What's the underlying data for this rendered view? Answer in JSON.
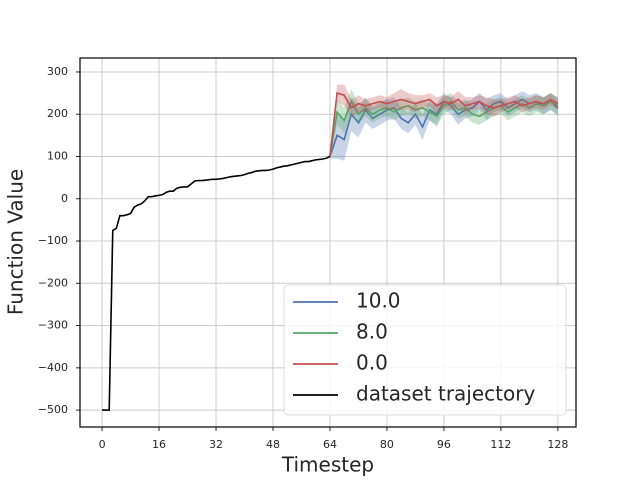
{
  "chart_data": {
    "type": "line",
    "xlabel": "Timestep",
    "ylabel": "Function Value",
    "xlim": [
      -6.2,
      133.1
    ],
    "ylim": [
      -540,
      333
    ],
    "xticks": [
      0,
      16,
      32,
      48,
      64,
      80,
      96,
      112,
      128
    ],
    "yticks": [
      {
        "value": -500,
        "label": "−500"
      },
      {
        "value": -400,
        "label": "−400"
      },
      {
        "value": -300,
        "label": "−300"
      },
      {
        "value": -200,
        "label": "−200"
      },
      {
        "value": -100,
        "label": "−100"
      },
      0,
      100,
      200,
      300
    ],
    "grid": true,
    "legend": "lower right",
    "series": [
      {
        "name": "10.0",
        "color": "#4c72b0",
        "x": [
          64,
          66,
          68,
          70,
          72,
          74,
          76,
          78,
          80,
          82,
          84,
          86,
          88,
          90,
          92,
          94,
          96,
          98,
          100,
          102,
          104,
          106,
          108,
          110,
          112,
          114,
          116,
          118,
          120,
          122,
          124,
          126,
          128
        ],
        "values": [
          100,
          150,
          140,
          200,
          180,
          210,
          190,
          200,
          210,
          215,
          190,
          180,
          200,
          170,
          210,
          200,
          230,
          220,
          200,
          210,
          215,
          230,
          210,
          225,
          230,
          215,
          225,
          235,
          225,
          230,
          220,
          230,
          215
        ],
        "errors": [
          5,
          55,
          50,
          40,
          35,
          30,
          25,
          25,
          25,
          25,
          25,
          25,
          25,
          30,
          25,
          25,
          20,
          20,
          25,
          20,
          20,
          20,
          25,
          20,
          20,
          20,
          20,
          20,
          20,
          20,
          20,
          20,
          20
        ]
      },
      {
        "name": "8.0",
        "color": "#55a868",
        "x": [
          64,
          66,
          68,
          70,
          72,
          74,
          76,
          78,
          80,
          82,
          84,
          86,
          88,
          90,
          92,
          94,
          96,
          98,
          100,
          102,
          104,
          106,
          108,
          110,
          112,
          114,
          116,
          118,
          120,
          122,
          124,
          126,
          128
        ],
        "values": [
          100,
          205,
          185,
          230,
          200,
          215,
          200,
          210,
          215,
          205,
          215,
          220,
          210,
          215,
          205,
          195,
          220,
          230,
          210,
          215,
          200,
          195,
          205,
          215,
          220,
          205,
          215,
          225,
          215,
          225,
          220,
          230,
          220
        ],
        "errors": [
          5,
          30,
          30,
          30,
          25,
          20,
          20,
          20,
          20,
          20,
          20,
          20,
          20,
          20,
          20,
          25,
          20,
          20,
          20,
          20,
          20,
          20,
          20,
          20,
          20,
          20,
          20,
          20,
          20,
          20,
          20,
          20,
          20
        ]
      },
      {
        "name": "0.0",
        "color": "#c44e52",
        "x": [
          64,
          66,
          68,
          70,
          72,
          74,
          76,
          78,
          80,
          82,
          84,
          86,
          88,
          90,
          92,
          94,
          96,
          98,
          100,
          102,
          104,
          106,
          108,
          110,
          112,
          114,
          116,
          118,
          120,
          122,
          124,
          126,
          128
        ],
        "values": [
          100,
          250,
          245,
          215,
          225,
          220,
          225,
          230,
          225,
          230,
          235,
          230,
          225,
          230,
          235,
          220,
          230,
          225,
          235,
          220,
          225,
          230,
          220,
          215,
          220,
          225,
          230,
          220,
          225,
          230,
          225,
          235,
          225
        ],
        "errors": [
          5,
          20,
          25,
          20,
          20,
          15,
          15,
          15,
          15,
          20,
          25,
          20,
          20,
          15,
          15,
          20,
          15,
          15,
          20,
          20,
          15,
          15,
          20,
          20,
          15,
          15,
          15,
          15,
          15,
          15,
          15,
          15,
          15
        ]
      },
      {
        "name": "dataset trajectory",
        "color": "#000000",
        "x": [
          0,
          1,
          2,
          3,
          4,
          5,
          6,
          7,
          8,
          9,
          10,
          11,
          12,
          13,
          14,
          15,
          16,
          17,
          18,
          19,
          20,
          21,
          22,
          23,
          24,
          25,
          26,
          27,
          28,
          29,
          30,
          31,
          32,
          33,
          34,
          35,
          36,
          37,
          38,
          39,
          40,
          41,
          42,
          43,
          44,
          45,
          46,
          47,
          48,
          49,
          50,
          51,
          52,
          53,
          54,
          55,
          56,
          57,
          58,
          59,
          60,
          61,
          62,
          63,
          64
        ],
        "values": [
          -500,
          -500,
          -500,
          -75,
          -70,
          -40,
          -40,
          -38,
          -35,
          -20,
          -15,
          -12,
          -5,
          5,
          5,
          7,
          8,
          10,
          15,
          18,
          18,
          25,
          27,
          28,
          28,
          35,
          42,
          43,
          43,
          44,
          45,
          46,
          46,
          47,
          48,
          50,
          52,
          53,
          54,
          55,
          57,
          60,
          62,
          65,
          66,
          67,
          67,
          68,
          70,
          73,
          75,
          77,
          78,
          80,
          82,
          84,
          86,
          88,
          88,
          90,
          92,
          93,
          94,
          96,
          100
        ]
      }
    ]
  }
}
